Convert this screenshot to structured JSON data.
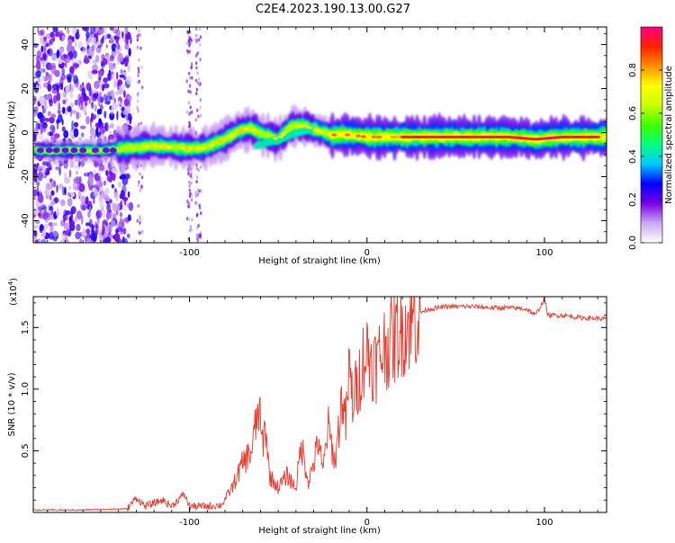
{
  "title": "C2E4.2023.190.13.00.G27",
  "chart_data": [
    {
      "type": "heatmap",
      "xlabel": "Height of straight line (km)",
      "ylabel": "Frequency (Hz)",
      "xlim": [
        -188,
        135
      ],
      "ylim": [
        -50,
        48
      ],
      "xticks": [
        -100,
        0,
        100
      ],
      "xtick_labels": [
        "-100",
        "0",
        "100"
      ],
      "yticks": [
        -40,
        -20,
        0,
        20,
        40
      ],
      "ytick_labels": [
        "-40",
        "-20",
        "0",
        "20",
        "40"
      ],
      "ridge": {
        "x": [
          -185,
          -150,
          -135,
          -120,
          -105,
          -92,
          -80,
          -72,
          -65,
          -58,
          -50,
          -42,
          -35,
          -28,
          -20,
          -10,
          0,
          20,
          50,
          80,
          95,
          110,
          135
        ],
        "y": [
          -8,
          -8,
          -7,
          -6,
          -7,
          -7,
          -3,
          1,
          2,
          -1,
          -3,
          3,
          3,
          1,
          -1,
          -1,
          -2,
          -2,
          -2,
          -2,
          -3,
          -2,
          -2
        ]
      },
      "colorbar": {
        "label": "Normalized spectral amplitude",
        "range": [
          0,
          1
        ],
        "ticks": [
          0.0,
          0.2,
          0.4,
          0.6,
          0.8
        ],
        "tick_labels": [
          "0.0",
          "0.2",
          "0.4",
          "0.6",
          "0.8"
        ],
        "colors": [
          "#ffffff",
          "#c9a8f0",
          "#7a00e6",
          "#0000ff",
          "#00c8ff",
          "#00ff80",
          "#40ff00",
          "#c8ff00",
          "#ffff00",
          "#ff9000",
          "#ff2000",
          "#ff0080"
        ]
      },
      "grid": false
    },
    {
      "type": "line",
      "xlabel": "Height of straight line (km)",
      "ylabel": "SNR (10 * v/v)",
      "yscale_label": "(x10",
      "yscale_exp": "4",
      "yscale_close": ")",
      "xlim": [
        -188,
        135
      ],
      "ylim": [
        0,
        1.75
      ],
      "xticks": [
        -100,
        0,
        100
      ],
      "xtick_labels": [
        "-100",
        "0",
        "100"
      ],
      "yticks": [
        0.5,
        1.0,
        1.5
      ],
      "ytick_labels": [
        "0.5",
        "1.0",
        "1.5"
      ],
      "color": "#e83a2e",
      "series": [
        {
          "x": [
            -188,
            -160,
            -135,
            -130,
            -125,
            -115,
            -110,
            -103,
            -100,
            -90,
            -82,
            -76,
            -70,
            -65,
            -61,
            -59,
            -57,
            -55,
            -50,
            -45,
            -40,
            -37,
            -33,
            -30,
            -27,
            -25,
            -22,
            -18,
            -14,
            -12,
            -10,
            -8,
            -5,
            -2,
            0,
            5,
            10,
            15,
            20,
            25,
            30,
            35,
            40,
            45,
            50,
            60,
            70,
            80,
            90,
            95,
            100,
            102,
            105,
            110,
            120,
            135
          ],
          "y": [
            0.02,
            0.02,
            0.03,
            0.12,
            0.05,
            0.1,
            0.05,
            0.15,
            0.05,
            0.05,
            0.06,
            0.2,
            0.4,
            0.5,
            0.85,
            0.55,
            0.7,
            0.3,
            0.2,
            0.3,
            0.2,
            0.55,
            0.25,
            0.4,
            0.6,
            0.3,
            0.7,
            0.4,
            0.95,
            0.7,
            1.15,
            0.9,
            1.05,
            1.25,
            1.3,
            1.2,
            1.35,
            1.4,
            1.5,
            1.55,
            1.62,
            1.65,
            1.66,
            1.67,
            1.67,
            1.67,
            1.66,
            1.66,
            1.65,
            1.6,
            1.73,
            1.6,
            1.6,
            1.6,
            1.58,
            1.57
          ]
        }
      ],
      "grid": false
    }
  ]
}
